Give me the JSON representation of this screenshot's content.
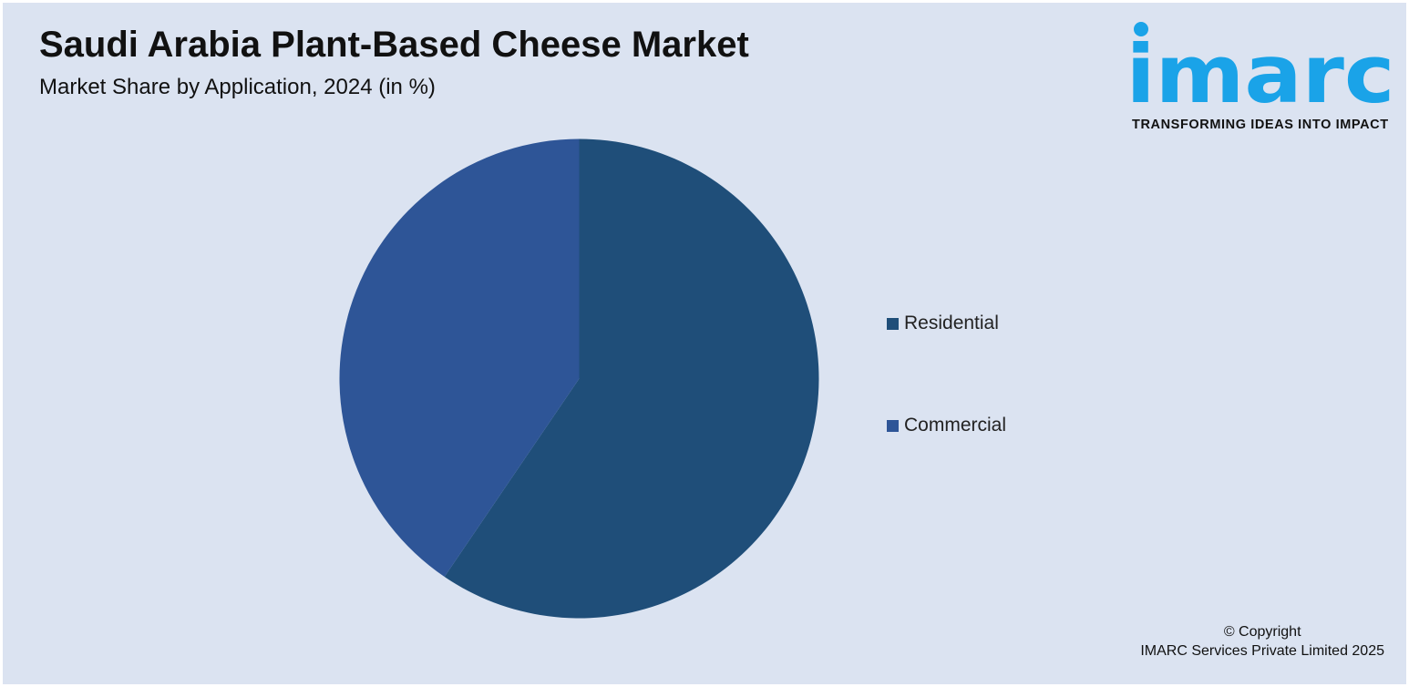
{
  "title": "Saudi Arabia Plant-Based Cheese Market",
  "subtitle": "Market Share by Application, 2024 (in %)",
  "logo": {
    "wordmark": "imarc",
    "tagline": "TRANSFORMING IDEAS INTO IMPACT",
    "color": "#1aa3e8"
  },
  "chart_data": {
    "type": "pie",
    "categories": [
      "Residential",
      "Commercial"
    ],
    "values": [
      59.5,
      40.5
    ],
    "colors": [
      "#1f4e79",
      "#2e5597"
    ],
    "start_angle_deg": 0,
    "direction": "clockwise",
    "legend": "right",
    "data_labels": false
  },
  "footer": {
    "copyright_line1": "© Copyright",
    "copyright_line2": "IMARC Services Private Limited 2025"
  }
}
